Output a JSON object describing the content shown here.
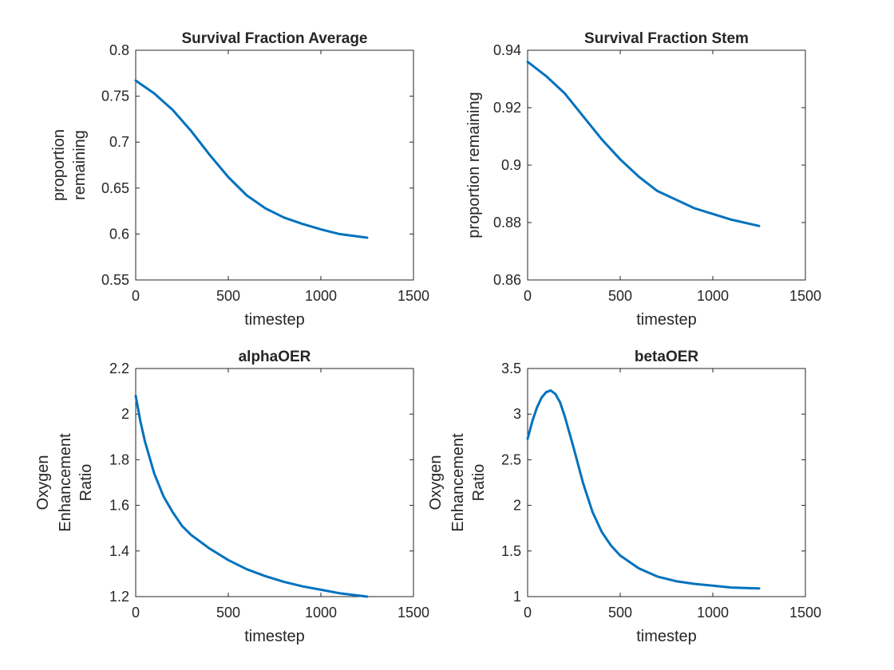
{
  "chart_data": [
    {
      "type": "line",
      "title": "Survival Fraction Average",
      "xlabel": "timestep",
      "ylabel": [
        "proportion",
        "remaining"
      ],
      "xlim": [
        0,
        1500
      ],
      "ylim": [
        0.55,
        0.8
      ],
      "xticks": [
        0,
        500,
        1000,
        1500
      ],
      "xtick_labels": [
        "0",
        "500",
        "1000",
        "1500"
      ],
      "yticks": [
        0.55,
        0.6,
        0.65,
        0.7,
        0.75,
        0.8
      ],
      "ytick_labels": [
        "0.55",
        "0.6",
        "0.65",
        "0.7",
        "0.75",
        "0.8"
      ],
      "grid": false,
      "color": "#0072BD",
      "series": [
        {
          "x": [
            0,
            100,
            200,
            300,
            400,
            500,
            600,
            700,
            800,
            900,
            1000,
            1100,
            1250
          ],
          "y": [
            0.767,
            0.753,
            0.735,
            0.712,
            0.686,
            0.662,
            0.642,
            0.628,
            0.618,
            0.611,
            0.605,
            0.6,
            0.596
          ]
        }
      ]
    },
    {
      "type": "line",
      "title": "Survival Fraction Stem",
      "xlabel": "timestep",
      "ylabel": [
        "proportion remaining"
      ],
      "xlim": [
        0,
        1500
      ],
      "ylim": [
        0.86,
        0.94
      ],
      "xticks": [
        0,
        500,
        1000,
        1500
      ],
      "xtick_labels": [
        "0",
        "500",
        "1000",
        "1500"
      ],
      "yticks": [
        0.86,
        0.88,
        0.9,
        0.92,
        0.94
      ],
      "ytick_labels": [
        "0.86",
        "0.88",
        "0.9",
        "0.92",
        "0.94"
      ],
      "grid": false,
      "color": "#0072BD",
      "series": [
        {
          "x": [
            0,
            100,
            200,
            300,
            400,
            500,
            600,
            700,
            800,
            900,
            1000,
            1100,
            1250
          ],
          "y": [
            0.936,
            0.931,
            0.925,
            0.917,
            0.909,
            0.902,
            0.896,
            0.891,
            0.888,
            0.885,
            0.883,
            0.881,
            0.8788
          ]
        }
      ]
    },
    {
      "type": "line",
      "title": "alphaOER",
      "xlabel": "timestep",
      "ylabel": [
        "Oxygen",
        "Enhancement",
        "Ratio"
      ],
      "xlim": [
        0,
        1500
      ],
      "ylim": [
        1.2,
        2.2
      ],
      "xticks": [
        0,
        500,
        1000,
        1500
      ],
      "xtick_labels": [
        "0",
        "500",
        "1000",
        "1500"
      ],
      "yticks": [
        1.2,
        1.4,
        1.6,
        1.8,
        2.0,
        2.2
      ],
      "ytick_labels": [
        "1.2",
        "1.4",
        "1.6",
        "1.8",
        "2",
        "2.2"
      ],
      "grid": false,
      "color": "#0072BD",
      "series": [
        {
          "x": [
            0,
            25,
            50,
            100,
            150,
            200,
            250,
            300,
            400,
            500,
            600,
            700,
            800,
            900,
            1000,
            1100,
            1250
          ],
          "y": [
            2.08,
            1.97,
            1.88,
            1.74,
            1.64,
            1.57,
            1.51,
            1.47,
            1.41,
            1.36,
            1.32,
            1.29,
            1.265,
            1.245,
            1.23,
            1.215,
            1.2
          ]
        }
      ]
    },
    {
      "type": "line",
      "title": "betaOER",
      "xlabel": "timestep",
      "ylabel": [
        "Oxygen",
        "Enhancement",
        "Ratio"
      ],
      "xlim": [
        0,
        1500
      ],
      "ylim": [
        1,
        3.5
      ],
      "xticks": [
        0,
        500,
        1000,
        1500
      ],
      "xtick_labels": [
        "0",
        "500",
        "1000",
        "1500"
      ],
      "yticks": [
        1,
        1.5,
        2,
        2.5,
        3,
        3.5
      ],
      "ytick_labels": [
        "1",
        "1.5",
        "2",
        "2.5",
        "3",
        "3.5"
      ],
      "grid": false,
      "color": "#0072BD",
      "series": [
        {
          "x": [
            0,
            25,
            50,
            75,
            100,
            125,
            150,
            175,
            200,
            250,
            300,
            350,
            400,
            450,
            500,
            600,
            700,
            800,
            900,
            1000,
            1100,
            1250
          ],
          "y": [
            2.73,
            2.92,
            3.07,
            3.18,
            3.24,
            3.26,
            3.22,
            3.13,
            2.98,
            2.62,
            2.24,
            1.93,
            1.71,
            1.56,
            1.45,
            1.31,
            1.22,
            1.17,
            1.14,
            1.12,
            1.1,
            1.09
          ]
        }
      ]
    }
  ]
}
